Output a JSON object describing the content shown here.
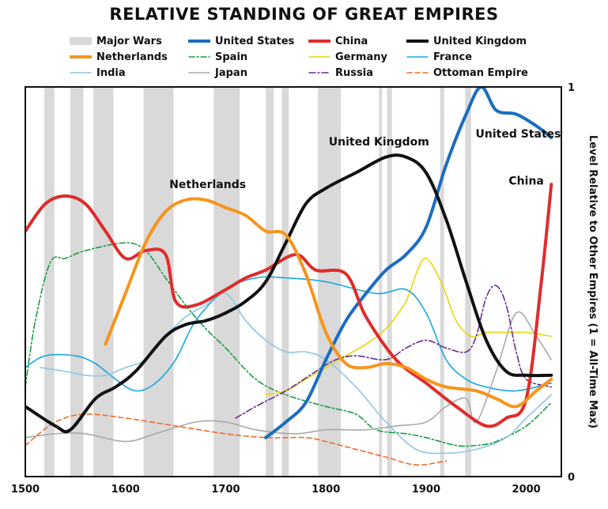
{
  "chart_data": {
    "type": "line",
    "title": "RELATIVE STANDING OF GREAT EMPIRES",
    "ylabel": "Level Relative to Other Empires (1 = All-Time Max)",
    "xlim": [
      1500,
      2035
    ],
    "ylim": [
      0,
      1
    ],
    "x_ticks": [
      "1500",
      "1600",
      "1700",
      "1800",
      "1900",
      "2000"
    ],
    "y_ticks": [
      "0",
      "1"
    ],
    "legend_position": "top",
    "major_wars": {
      "label": "Major Wars",
      "color": "#d9d9d9",
      "periods": [
        [
          1519,
          1529
        ],
        [
          1545,
          1558
        ],
        [
          1568,
          1588
        ],
        [
          1618,
          1648
        ],
        [
          1688,
          1714
        ],
        [
          1740,
          1748
        ],
        [
          1756,
          1763
        ],
        [
          1792,
          1815
        ],
        [
          1853,
          1856
        ],
        [
          1861,
          1866
        ],
        [
          1914,
          1918
        ],
        [
          1939,
          1945
        ]
      ]
    },
    "series": [
      {
        "name": "United States",
        "color": "#1a6dc0",
        "width": 4,
        "dash": "",
        "x": [
          1740,
          1760,
          1780,
          1800,
          1820,
          1840,
          1860,
          1880,
          1900,
          1920,
          1940,
          1955,
          1970,
          1990,
          2010,
          2025
        ],
        "y": [
          0.1,
          0.14,
          0.19,
          0.3,
          0.4,
          0.47,
          0.53,
          0.57,
          0.64,
          0.8,
          0.93,
          1.0,
          0.94,
          0.93,
          0.9,
          0.87
        ]
      },
      {
        "name": "China",
        "color": "#e02b2b",
        "width": 4,
        "dash": "",
        "x": [
          1500,
          1520,
          1540,
          1560,
          1580,
          1600,
          1620,
          1640,
          1650,
          1670,
          1700,
          1720,
          1740,
          1770,
          1790,
          1820,
          1840,
          1870,
          1900,
          1930,
          1960,
          1980,
          2000,
          2015,
          2025
        ],
        "y": [
          0.63,
          0.7,
          0.72,
          0.7,
          0.63,
          0.56,
          0.58,
          0.57,
          0.45,
          0.44,
          0.48,
          0.51,
          0.53,
          0.57,
          0.53,
          0.52,
          0.41,
          0.3,
          0.24,
          0.18,
          0.13,
          0.15,
          0.2,
          0.5,
          0.75
        ]
      },
      {
        "name": "United Kingdom",
        "color": "#111111",
        "width": 4,
        "dash": "",
        "x": [
          1500,
          1530,
          1545,
          1570,
          1590,
          1610,
          1640,
          1660,
          1680,
          1700,
          1720,
          1740,
          1760,
          1780,
          1800,
          1830,
          1860,
          1880,
          1900,
          1920,
          1940,
          1960,
          1980,
          2000,
          2025
        ],
        "y": [
          0.18,
          0.13,
          0.12,
          0.2,
          0.23,
          0.27,
          0.36,
          0.39,
          0.4,
          0.42,
          0.45,
          0.5,
          0.6,
          0.7,
          0.74,
          0.78,
          0.82,
          0.82,
          0.78,
          0.66,
          0.5,
          0.35,
          0.27,
          0.26,
          0.26
        ]
      },
      {
        "name": "Netherlands",
        "color": "#f7941d",
        "width": 4,
        "dash": "",
        "x": [
          1580,
          1600,
          1620,
          1640,
          1660,
          1680,
          1700,
          1720,
          1740,
          1760,
          1780,
          1800,
          1820,
          1840,
          1860,
          1880,
          1900,
          1920,
          1950,
          1970,
          1990,
          2010,
          2025
        ],
        "y": [
          0.34,
          0.47,
          0.6,
          0.68,
          0.71,
          0.71,
          0.69,
          0.67,
          0.63,
          0.62,
          0.52,
          0.37,
          0.29,
          0.28,
          0.29,
          0.28,
          0.25,
          0.23,
          0.22,
          0.2,
          0.18,
          0.22,
          0.25
        ]
      },
      {
        "name": "Spain",
        "color": "#1a9c45",
        "width": 1.6,
        "dash": "7,3,2,3",
        "x": [
          1500,
          1510,
          1525,
          1540,
          1560,
          1600,
          1620,
          1640,
          1660,
          1680,
          1700,
          1730,
          1760,
          1800,
          1830,
          1850,
          1880,
          1900,
          1930,
          1950,
          1970,
          2000,
          2025
        ],
        "y": [
          0.23,
          0.4,
          0.55,
          0.56,
          0.58,
          0.6,
          0.58,
          0.51,
          0.44,
          0.38,
          0.33,
          0.25,
          0.21,
          0.18,
          0.16,
          0.12,
          0.11,
          0.1,
          0.08,
          0.08,
          0.09,
          0.13,
          0.19
        ]
      },
      {
        "name": "Germany",
        "color": "#e8d70f",
        "width": 1.6,
        "dash": "",
        "x": [
          1740,
          1760,
          1780,
          1800,
          1820,
          1840,
          1860,
          1880,
          1890,
          1900,
          1915,
          1930,
          1945,
          1960,
          1980,
          2000,
          2025
        ],
        "y": [
          0.21,
          0.22,
          0.25,
          0.28,
          0.31,
          0.34,
          0.38,
          0.45,
          0.52,
          0.56,
          0.5,
          0.4,
          0.36,
          0.37,
          0.37,
          0.37,
          0.36
        ]
      },
      {
        "name": "France",
        "color": "#18a7e0",
        "width": 1.6,
        "dash": "",
        "x": [
          1500,
          1520,
          1550,
          1570,
          1590,
          1610,
          1630,
          1650,
          1670,
          1700,
          1730,
          1760,
          1800,
          1850,
          1880,
          1900,
          1920,
          1940,
          1960,
          1990,
          2025
        ],
        "y": [
          0.28,
          0.31,
          0.31,
          0.29,
          0.25,
          0.22,
          0.24,
          0.3,
          0.4,
          0.48,
          0.51,
          0.51,
          0.5,
          0.47,
          0.48,
          0.42,
          0.3,
          0.25,
          0.23,
          0.22,
          0.24
        ]
      },
      {
        "name": "India",
        "color": "#8ec6e6",
        "width": 1.6,
        "dash": "",
        "x": [
          1515,
          1540,
          1560,
          1580,
          1600,
          1620,
          1640,
          1660,
          1680,
          1700,
          1720,
          1740,
          1760,
          1780,
          1800,
          1830,
          1860,
          1890,
          1920,
          1950,
          1980,
          2000,
          2025
        ],
        "y": [
          0.28,
          0.27,
          0.26,
          0.26,
          0.28,
          0.3,
          0.36,
          0.41,
          0.44,
          0.47,
          0.4,
          0.35,
          0.32,
          0.32,
          0.3,
          0.23,
          0.14,
          0.07,
          0.06,
          0.07,
          0.1,
          0.15,
          0.21
        ]
      },
      {
        "name": "Japan",
        "color": "#a9a9a9",
        "width": 1.6,
        "dash": "",
        "x": [
          1500,
          1530,
          1560,
          1600,
          1630,
          1670,
          1700,
          1730,
          1770,
          1800,
          1840,
          1870,
          1900,
          1920,
          1940,
          1950,
          1970,
          1990,
          2010,
          2025
        ],
        "y": [
          0.1,
          0.11,
          0.11,
          0.09,
          0.11,
          0.14,
          0.14,
          0.12,
          0.11,
          0.12,
          0.12,
          0.13,
          0.14,
          0.18,
          0.2,
          0.14,
          0.27,
          0.42,
          0.36,
          0.3
        ]
      },
      {
        "name": "Russia",
        "color": "#6a2c91",
        "width": 1.6,
        "dash": "8,3,2,3",
        "x": [
          1710,
          1730,
          1760,
          1790,
          1810,
          1830,
          1860,
          1880,
          1900,
          1920,
          1940,
          1950,
          1960,
          1970,
          1980,
          1990,
          2000,
          2025
        ],
        "y": [
          0.15,
          0.18,
          0.22,
          0.27,
          0.3,
          0.31,
          0.3,
          0.33,
          0.35,
          0.33,
          0.32,
          0.36,
          0.46,
          0.49,
          0.44,
          0.32,
          0.25,
          0.23
        ]
      },
      {
        "name": "Ottoman Empire",
        "color": "#ef6a2a",
        "width": 1.6,
        "dash": "6,4",
        "x": [
          1500,
          1530,
          1560,
          1600,
          1650,
          1700,
          1740,
          1780,
          1800,
          1830,
          1860,
          1890,
          1920
        ],
        "y": [
          0.08,
          0.14,
          0.16,
          0.15,
          0.13,
          0.11,
          0.1,
          0.1,
          0.09,
          0.07,
          0.05,
          0.03,
          0.04
        ]
      }
    ],
    "annotations": [
      {
        "text": "Netherlands",
        "x": 1682,
        "y": 0.74
      },
      {
        "text": "United Kingdom",
        "x": 1853,
        "y": 0.85
      },
      {
        "text": "United States",
        "x": 1992,
        "y": 0.87
      },
      {
        "text": "China",
        "x": 2000,
        "y": 0.75
      }
    ]
  }
}
